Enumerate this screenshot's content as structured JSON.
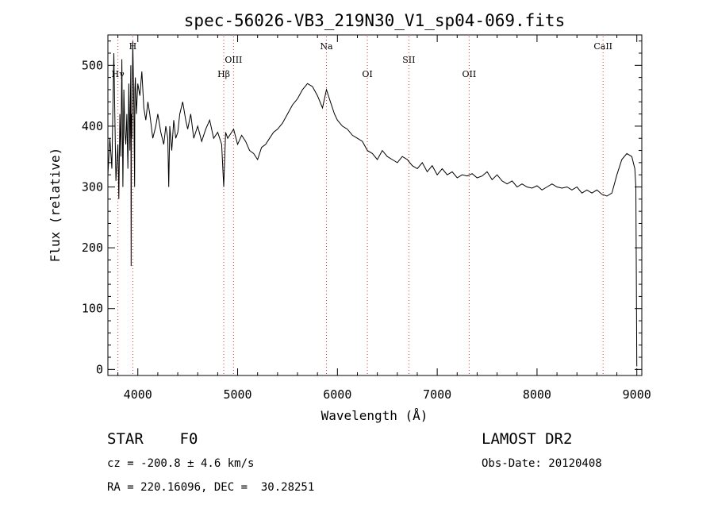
{
  "chart_data": {
    "type": "line",
    "title": "spec-56026-VB3_219N30_V1_sp04-069.fits",
    "xlabel": "Wavelength (Å)",
    "ylabel": "Flux (relative)",
    "xlim": [
      3700,
      9050
    ],
    "ylim": [
      -10,
      550
    ],
    "xticks": [
      4000,
      5000,
      6000,
      7000,
      8000,
      9000
    ],
    "yticks": [
      0,
      100,
      200,
      300,
      400,
      500
    ],
    "grid": false,
    "series": [
      {
        "color": "#000000",
        "x": [
          3700,
          3720,
          3740,
          3760,
          3780,
          3800,
          3810,
          3820,
          3830,
          3840,
          3850,
          3860,
          3870,
          3880,
          3890,
          3900,
          3910,
          3920,
          3930,
          3933,
          3936,
          3940,
          3950,
          3960,
          3968,
          3970,
          3975,
          3985,
          4000,
          4020,
          4040,
          4060,
          4080,
          4101,
          4120,
          4150,
          4180,
          4200,
          4230,
          4260,
          4280,
          4300,
          4310,
          4320,
          4340,
          4360,
          4380,
          4400,
          4420,
          4450,
          4480,
          4500,
          4530,
          4560,
          4600,
          4640,
          4680,
          4720,
          4760,
          4800,
          4840,
          4861,
          4880,
          4900,
          4920,
          4960,
          5000,
          5040,
          5080,
          5120,
          5160,
          5200,
          5240,
          5280,
          5320,
          5360,
          5400,
          5450,
          5500,
          5550,
          5600,
          5650,
          5700,
          5750,
          5800,
          5850,
          5890,
          5930,
          5970,
          6000,
          6050,
          6100,
          6150,
          6200,
          6250,
          6300,
          6350,
          6400,
          6450,
          6500,
          6550,
          6600,
          6650,
          6700,
          6750,
          6800,
          6850,
          6900,
          6950,
          7000,
          7050,
          7100,
          7150,
          7200,
          7250,
          7300,
          7350,
          7400,
          7450,
          7500,
          7550,
          7600,
          7650,
          7700,
          7750,
          7800,
          7850,
          7900,
          7950,
          8000,
          8050,
          8100,
          8150,
          8200,
          8250,
          8300,
          8350,
          8400,
          8450,
          8500,
          8550,
          8600,
          8650,
          8700,
          8750,
          8800,
          8850,
          8900,
          8950,
          8980,
          8990,
          9000
        ],
        "y": [
          320,
          380,
          330,
          520,
          310,
          370,
          280,
          420,
          350,
          510,
          300,
          460,
          390,
          370,
          420,
          330,
          470,
          360,
          500,
          170,
          420,
          380,
          540,
          430,
          300,
          460,
          480,
          420,
          470,
          450,
          490,
          430,
          410,
          440,
          420,
          380,
          400,
          420,
          390,
          370,
          400,
          380,
          300,
          400,
          360,
          410,
          380,
          390,
          420,
          440,
          410,
          395,
          420,
          380,
          400,
          375,
          395,
          410,
          380,
          390,
          370,
          300,
          390,
          380,
          385,
          395,
          370,
          385,
          375,
          360,
          355,
          345,
          365,
          370,
          380,
          390,
          395,
          405,
          420,
          435,
          445,
          460,
          470,
          465,
          450,
          430,
          460,
          440,
          420,
          410,
          400,
          395,
          385,
          380,
          375,
          360,
          355,
          345,
          360,
          350,
          345,
          340,
          350,
          345,
          335,
          330,
          340,
          325,
          335,
          320,
          330,
          320,
          325,
          315,
          320,
          318,
          322,
          315,
          318,
          325,
          312,
          320,
          310,
          305,
          310,
          300,
          305,
          300,
          298,
          302,
          295,
          300,
          305,
          300,
          298,
          300,
          295,
          300,
          290,
          295,
          290,
          295,
          288,
          285,
          290,
          320,
          345,
          355,
          350,
          330,
          300,
          5
        ]
      }
    ],
    "emission_lines": [
      {
        "label": "Hγ",
        "x": 3800,
        "tier": "low"
      },
      {
        "label": "H",
        "x": 3950,
        "tier": "top"
      },
      {
        "label": "OIII",
        "x": 4959,
        "tier": "mid"
      },
      {
        "label": "Hβ",
        "x": 4861,
        "tier": "low"
      },
      {
        "label": "Na",
        "x": 5890,
        "tier": "top"
      },
      {
        "label": "OI",
        "x": 6300,
        "tier": "low"
      },
      {
        "label": "SII",
        "x": 6716,
        "tier": "mid"
      },
      {
        "label": "OII",
        "x": 7320,
        "tier": "low"
      },
      {
        "label": "CaII",
        "x": 8662,
        "tier": "top"
      }
    ]
  },
  "info": {
    "object_type": "STAR    F0",
    "survey": "LAMOST DR2",
    "cz": "cz = -200.8 ± 4.6 km/s",
    "obs_date": "Obs-Date: 20120408",
    "coords": "RA = 220.16096, DEC =  30.28251"
  }
}
